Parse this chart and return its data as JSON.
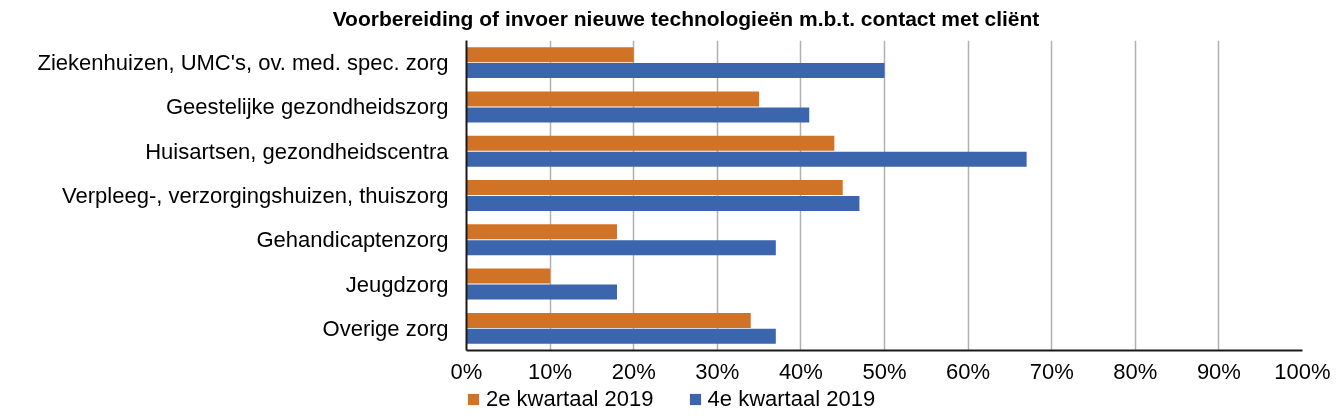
{
  "chart_data": {
    "type": "bar",
    "orientation": "horizontal",
    "title": "Voorbereiding of invoer nieuwe technologieën m.b.t. contact met cliënt",
    "categories": [
      "Ziekenhuizen, UMC's, ov. med. spec. zorg",
      "Geestelijke gezondheidszorg",
      "Huisartsen, gezondheidscentra",
      "Verpleeg-, verzorgingshuizen, thuiszorg",
      "Gehandicaptenzorg",
      "Jeugdzorg",
      "Overige zorg"
    ],
    "series": [
      {
        "name": "2e kwartaal 2019",
        "color": "#d07326",
        "values": [
          20,
          35,
          44,
          45,
          18,
          10,
          34
        ]
      },
      {
        "name": "4e kwartaal 2019",
        "color": "#3b66ad",
        "values": [
          50,
          41,
          67,
          47,
          37,
          18,
          37
        ]
      }
    ],
    "xlim": [
      0,
      100
    ],
    "xticks": [
      {
        "value": 0,
        "label": "0%"
      },
      {
        "value": 10,
        "label": "10%"
      },
      {
        "value": 20,
        "label": "20%"
      },
      {
        "value": 30,
        "label": "30%"
      },
      {
        "value": 40,
        "label": "40%"
      },
      {
        "value": 50,
        "label": "50%"
      },
      {
        "value": 60,
        "label": "60%"
      },
      {
        "value": 70,
        "label": "70%"
      },
      {
        "value": 80,
        "label": "80%"
      },
      {
        "value": 90,
        "label": "90%"
      },
      {
        "value": 100,
        "label": "100%"
      }
    ],
    "grid": "x",
    "legend": "bottom"
  }
}
